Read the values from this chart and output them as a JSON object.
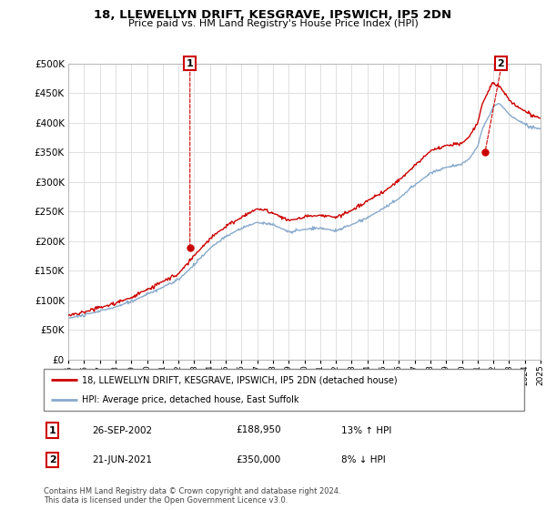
{
  "title": "18, LLEWELLYN DRIFT, KESGRAVE, IPSWICH, IP5 2DN",
  "subtitle": "Price paid vs. HM Land Registry's House Price Index (HPI)",
  "legend_line1": "18, LLEWELLYN DRIFT, KESGRAVE, IPSWICH, IP5 2DN (detached house)",
  "legend_line2": "HPI: Average price, detached house, East Suffolk",
  "annotation1_date": "26-SEP-2002",
  "annotation1_price": "£188,950",
  "annotation1_hpi": "13% ↑ HPI",
  "annotation2_date": "21-JUN-2021",
  "annotation2_price": "£350,000",
  "annotation2_hpi": "8% ↓ HPI",
  "footer": "Contains HM Land Registry data © Crown copyright and database right 2024.\nThis data is licensed under the Open Government Licence v3.0.",
  "price_color": "#cc0000",
  "hpi_color": "#88aacc",
  "annotation_box_color": "#cc0000",
  "ylim": [
    0,
    500000
  ],
  "yticks": [
    0,
    50000,
    100000,
    150000,
    200000,
    250000,
    300000,
    350000,
    400000,
    450000,
    500000
  ],
  "sale1_year": 2002.73,
  "sale1_price": 188950,
  "sale2_year": 2021.47,
  "sale2_price": 350000
}
